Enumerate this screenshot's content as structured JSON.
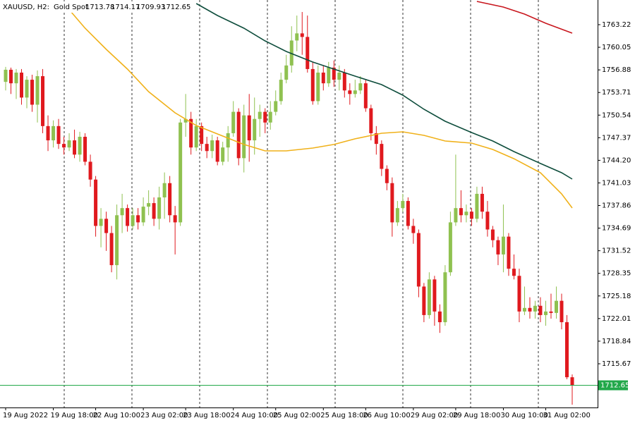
{
  "chart_data": {
    "type": "candlestick",
    "title": "XAUUSD, H2:",
    "subtitle": "Gold Spot",
    "categories": [
      "19 Aug 2022",
      null,
      null,
      null,
      null,
      null,
      null,
      null,
      null,
      "19 Aug 18:00",
      null,
      null,
      null,
      null,
      null,
      null,
      null,
      "22 Aug 10:00",
      null,
      null,
      null,
      null,
      null,
      null,
      null,
      null,
      "23 Aug 02:00",
      null,
      null,
      null,
      null,
      null,
      null,
      null,
      "23 Aug 18:00",
      null,
      null,
      null,
      null,
      null,
      null,
      null,
      null,
      "24 Aug 10:00",
      null,
      null,
      null,
      null,
      null,
      null,
      null,
      "25 Aug 02:00",
      null,
      null,
      null,
      null,
      null,
      null,
      null,
      null,
      "25 Aug 18:00",
      null,
      null,
      null,
      null,
      null,
      null,
      null,
      "26 Aug 10:00",
      null,
      null,
      null,
      null,
      null,
      null,
      null,
      null,
      "29 Aug 02:00",
      null,
      null,
      null,
      null,
      null,
      null,
      null,
      "29 Aug 18:00",
      null,
      null,
      null,
      null,
      null,
      null,
      null,
      null,
      "30 Aug 10:00",
      null,
      null,
      null,
      null,
      null,
      null,
      null,
      "31 Aug 02:00",
      null,
      null,
      null,
      null,
      null
    ],
    "open": [
      1755.2,
      1756.9,
      1755.0,
      1756.5,
      1753.0,
      1755.5,
      1752.0,
      1756.0,
      1749.0,
      1747.0,
      1749.0,
      1746.5,
      1746.0,
      1747.0,
      1745.0,
      1747.5,
      1744.0,
      1741.5,
      1735.0,
      1736.0,
      1734.0,
      1729.5,
      1736.5,
      1737.5,
      1735.0,
      1736.5,
      1735.5,
      1737.7,
      1738.2,
      1736.0,
      1739.0,
      1741.0,
      1736.5,
      1735.5,
      1749.5,
      1750.0,
      1746.0,
      1749.0,
      1746.5,
      1745.5,
      1747.0,
      1744.0,
      1746.0,
      1748.0,
      1751.0,
      1744.5,
      1750.5,
      1747.0,
      1750.0,
      1751.0,
      1749.5,
      1751.0,
      1752.5,
      1755.5,
      1757.5,
      1761.0,
      1762.0,
      1761.5,
      1757.0,
      1752.5,
      1756.5,
      1755.0,
      1757.2,
      1755.5,
      1756.5,
      1754.0,
      1753.5,
      1754.0,
      1755.0,
      1751.5,
      1748.0,
      1746.5,
      1743.0,
      1741.0,
      1735.5,
      1737.5,
      1738.5,
      1735.0,
      1734.0,
      1726.5,
      1722.5,
      1727.5,
      1723.0,
      1721.5,
      1728.5,
      1735.5,
      1737.5,
      1736.5,
      1737.0,
      1736.0,
      1739.5,
      1737.0,
      1734.5,
      1733.0,
      1731.0,
      1733.5,
      1729.0,
      1728.0,
      1723.0,
      1723.5,
      1723.0,
      1723.8,
      1722.5,
      1723.0,
      1722.8,
      1724.5,
      1721.5,
      1713.78
    ],
    "high": [
      1757.3,
      1757.2,
      1757.0,
      1757.0,
      1756.0,
      1756.2,
      1756.8,
      1757.0,
      1750.5,
      1749.8,
      1750.0,
      1747.5,
      1748.0,
      1748.5,
      1748.2,
      1748.0,
      1745.0,
      1742.0,
      1737.5,
      1737.0,
      1735.0,
      1738.0,
      1739.5,
      1738.0,
      1737.5,
      1737.5,
      1739.0,
      1740.0,
      1739.0,
      1740.5,
      1742.5,
      1742.0,
      1737.8,
      1750.0,
      1753.5,
      1751.0,
      1750.0,
      1749.5,
      1747.5,
      1747.8,
      1747.5,
      1746.8,
      1749.0,
      1752.5,
      1751.5,
      1752.0,
      1753.5,
      1753.0,
      1752.0,
      1751.5,
      1752.5,
      1754.0,
      1756.5,
      1759.0,
      1763.0,
      1764.5,
      1765.0,
      1764.5,
      1758.0,
      1757.5,
      1757.5,
      1758.0,
      1758.2,
      1757.5,
      1757.0,
      1755.0,
      1755.5,
      1756.0,
      1755.5,
      1752.0,
      1749.0,
      1747.0,
      1743.5,
      1741.8,
      1738.5,
      1739.5,
      1739.0,
      1736.0,
      1734.5,
      1727.0,
      1728.5,
      1728.0,
      1724.0,
      1729.5,
      1737.0,
      1745.0,
      1740.0,
      1738.0,
      1737.5,
      1740.5,
      1740.5,
      1738.5,
      1735.0,
      1733.5,
      1738.0,
      1734.0,
      1731.0,
      1729.0,
      1726.5,
      1725.0,
      1724.5,
      1725.0,
      1724.5,
      1725.5,
      1726.5,
      1725.5,
      1722.5,
      1714.17
    ],
    "low": [
      1754.0,
      1753.5,
      1752.8,
      1752.0,
      1751.5,
      1751.0,
      1749.5,
      1748.0,
      1745.5,
      1746.0,
      1745.8,
      1745.0,
      1745.5,
      1744.5,
      1744.0,
      1743.5,
      1740.5,
      1733.5,
      1732.0,
      1731.5,
      1728.5,
      1727.5,
      1734.0,
      1734.2,
      1734.5,
      1734.5,
      1735.0,
      1736.5,
      1735.0,
      1734.5,
      1736.0,
      1735.5,
      1731.0,
      1735.0,
      1747.5,
      1745.0,
      1745.5,
      1745.5,
      1744.5,
      1744.5,
      1743.5,
      1743.5,
      1744.0,
      1747.5,
      1743.5,
      1742.5,
      1744.0,
      1745.0,
      1747.5,
      1748.0,
      1748.5,
      1750.5,
      1752.0,
      1755.0,
      1756.5,
      1759.5,
      1759.0,
      1756.5,
      1752.0,
      1752.0,
      1754.0,
      1754.5,
      1754.5,
      1754.0,
      1753.0,
      1752.0,
      1753.0,
      1753.5,
      1751.0,
      1747.0,
      1745.0,
      1742.0,
      1740.0,
      1733.5,
      1735.0,
      1737.0,
      1734.5,
      1732.5,
      1725.0,
      1721.5,
      1722.0,
      1721.0,
      1720.0,
      1721.0,
      1728.0,
      1735.0,
      1735.5,
      1735.5,
      1735.0,
      1735.5,
      1736.0,
      1733.5,
      1732.0,
      1729.5,
      1728.5,
      1728.0,
      1727.5,
      1721.5,
      1722.5,
      1722.0,
      1722.0,
      1721.5,
      1721.0,
      1722.0,
      1722.0,
      1720.5,
      1713.5,
      1709.93
    ],
    "close": [
      1756.9,
      1755.0,
      1756.5,
      1753.0,
      1755.5,
      1752.0,
      1756.0,
      1749.0,
      1747.0,
      1749.0,
      1746.5,
      1746.0,
      1747.0,
      1745.0,
      1747.5,
      1744.0,
      1741.5,
      1735.0,
      1736.0,
      1734.0,
      1729.5,
      1736.5,
      1737.5,
      1735.0,
      1736.5,
      1735.5,
      1737.7,
      1738.2,
      1736.0,
      1739.0,
      1741.0,
      1736.5,
      1735.5,
      1749.5,
      1750.0,
      1746.0,
      1749.0,
      1746.5,
      1745.5,
      1747.0,
      1744.0,
      1746.0,
      1748.0,
      1751.0,
      1744.5,
      1750.5,
      1747.0,
      1750.0,
      1751.0,
      1749.5,
      1751.0,
      1752.5,
      1755.5,
      1757.5,
      1761.0,
      1762.0,
      1761.5,
      1757.0,
      1752.5,
      1756.5,
      1755.0,
      1757.2,
      1755.5,
      1756.5,
      1754.0,
      1753.5,
      1754.0,
      1755.0,
      1751.5,
      1748.0,
      1746.5,
      1743.0,
      1741.0,
      1735.5,
      1737.5,
      1738.5,
      1735.0,
      1734.0,
      1726.5,
      1722.5,
      1727.5,
      1723.0,
      1721.5,
      1728.5,
      1735.5,
      1737.5,
      1736.5,
      1737.0,
      1736.0,
      1739.5,
      1737.0,
      1734.5,
      1733.0,
      1731.0,
      1733.5,
      1729.0,
      1728.0,
      1723.0,
      1723.5,
      1723.0,
      1723.8,
      1722.5,
      1723.0,
      1722.8,
      1724.5,
      1721.5,
      1713.78,
      1712.65
    ],
    "up_color": "#8fc150",
    "down_color": "#e0191e",
    "price_line_color": "#22a84a",
    "lines": [
      {
        "color": "#f0b11a",
        "x": [
          11,
          15,
          19,
          23,
          27,
          32,
          36,
          40,
          45,
          49,
          53,
          58,
          62,
          66,
          71,
          75,
          79,
          83,
          88,
          92,
          96,
          101,
          105,
          107
        ],
        "values": [
          1766.19,
          1762.73,
          1759.76,
          1756.99,
          1753.83,
          1750.86,
          1749.08,
          1747.9,
          1746.42,
          1745.52,
          1745.52,
          1745.92,
          1746.42,
          1747.21,
          1748.0,
          1748.19,
          1747.7,
          1746.91,
          1746.61,
          1745.72,
          1744.43,
          1742.46,
          1739.49,
          1737.52
        ]
      },
      {
        "color": "#0e4d3c",
        "x": [
          36,
          40,
          45,
          49,
          53,
          58,
          62,
          66,
          71,
          75,
          79,
          83,
          88,
          92,
          96,
          101,
          105,
          107
        ],
        "values": [
          1766.19,
          1764.51,
          1762.73,
          1760.95,
          1759.46,
          1757.98,
          1756.99,
          1756.0,
          1754.82,
          1753.33,
          1751.36,
          1749.68,
          1748.09,
          1746.91,
          1745.43,
          1743.75,
          1742.46,
          1741.57
        ]
      },
      {
        "color": "#c8161d",
        "x": [
          89,
          94,
          98,
          102,
          107
        ],
        "values": [
          1766.48,
          1765.69,
          1764.7,
          1763.42,
          1762.03
        ]
      }
    ],
    "ylim": [
      1709.54,
      1766.68
    ],
    "yticks": [
      1715.67,
      1718.84,
      1722.01,
      1725.18,
      1728.35,
      1731.52,
      1734.69,
      1737.86,
      1741.03,
      {
        "value": 1744.2,
        "label": "1744.20"
      },
      1747.37,
      1750.54,
      1753.71,
      1756.88,
      1760.05,
      1763.22
    ],
    "grid": false
  }
}
